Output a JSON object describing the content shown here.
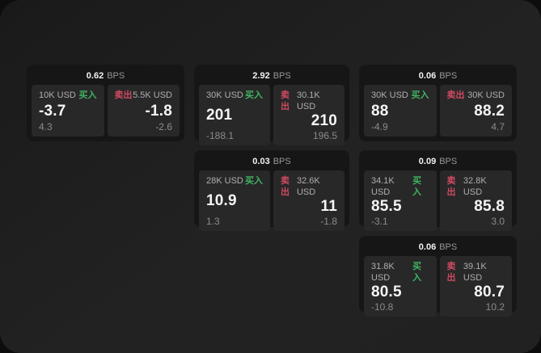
{
  "colors": {
    "buy_green": "#3fb463",
    "sell_red": "#cf4a62",
    "window_bg": "#1e1e1e",
    "card_bg": "#161616",
    "panel_bg": "#282828"
  },
  "labels": {
    "bps_unit": "BPS",
    "buy": "买入",
    "sell": "卖出"
  },
  "cards": [
    {
      "row": 1,
      "col": 1,
      "bps_value": "0.62",
      "bps_unit": "BPS",
      "buy": {
        "amount": "10K USD",
        "label": "买入",
        "value": "-3.7",
        "sub": "4.3"
      },
      "sell": {
        "label": "卖出",
        "amount": "5.5K USD",
        "value": "-1.8",
        "sub": "-2.6"
      }
    },
    {
      "row": 1,
      "col": 2,
      "bps_value": "2.92",
      "bps_unit": "BPS",
      "buy": {
        "amount": "30K USD",
        "label": "买入",
        "value": "201",
        "sub": "-188.1"
      },
      "sell": {
        "label": "卖出",
        "amount": "30.1K USD",
        "value": "210",
        "sub": "196.5"
      }
    },
    {
      "row": 1,
      "col": 3,
      "bps_value": "0.06",
      "bps_unit": "BPS",
      "buy": {
        "amount": "30K USD",
        "label": "买入",
        "value": "88",
        "sub": "-4.9"
      },
      "sell": {
        "label": "卖出",
        "amount": "30K USD",
        "value": "88.2",
        "sub": "4.7"
      }
    },
    {
      "row": 2,
      "col": 2,
      "bps_value": "0.03",
      "bps_unit": "BPS",
      "buy": {
        "amount": "28K USD",
        "label": "买入",
        "value": "10.9",
        "sub": "1.3"
      },
      "sell": {
        "label": "卖出",
        "amount": "32.6K USD",
        "value": "11",
        "sub": "-1.8"
      }
    },
    {
      "row": 2,
      "col": 3,
      "bps_value": "0.09",
      "bps_unit": "BPS",
      "buy": {
        "amount": "34.1K USD",
        "label": "买入",
        "value": "85.5",
        "sub": "-3.1"
      },
      "sell": {
        "label": "卖出",
        "amount": "32.8K USD",
        "value": "85.8",
        "sub": "3.0"
      }
    },
    {
      "row": 3,
      "col": 3,
      "bps_value": "0.06",
      "bps_unit": "BPS",
      "buy": {
        "amount": "31.8K USD",
        "label": "买入",
        "value": "80.5",
        "sub": "-10.8"
      },
      "sell": {
        "label": "卖出",
        "amount": "39.1K USD",
        "value": "80.7",
        "sub": "10.2"
      }
    }
  ]
}
